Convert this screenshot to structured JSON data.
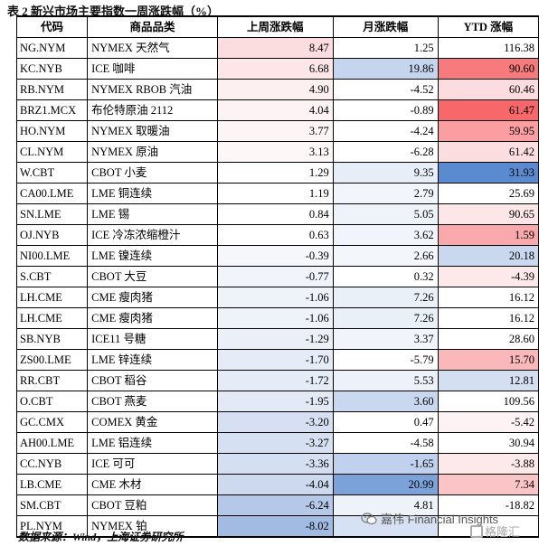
{
  "caption": "表 2 新兴市场主要指数一周涨跌幅（%）",
  "headers": [
    "代码",
    "商品品类",
    "上周涨跌幅",
    "月涨跌幅",
    "YTD 涨幅"
  ],
  "rows": [
    {
      "code": "NG.NYM",
      "name": "NYMEX 天然气",
      "week": "8.47",
      "month": "1.25",
      "ytd": "116.38",
      "week_color": "#fbdddf",
      "month_color": "#ffffff",
      "ytd_color": "#ffffff"
    },
    {
      "code": "KC.NYB",
      "name": "ICE 咖啡",
      "week": "6.68",
      "month": "19.86",
      "ytd": "90.60",
      "week_color": "#fce6e8",
      "month_color": "#c5d5ee",
      "ytd_color": "#f77a7d"
    },
    {
      "code": "RB.NYM",
      "name": "NYMEX RBOB 汽油",
      "week": "4.90",
      "month": "-4.52",
      "ytd": "60.46",
      "week_color": "#fdf0f1",
      "month_color": "#ffffff",
      "ytd_color": "#fcdcde"
    },
    {
      "code": "BRZ1.MCX",
      "name": "布伦特原油 2112",
      "week": "4.04",
      "month": "-0.89",
      "ytd": "61.47",
      "week_color": "#fdf3f4",
      "month_color": "#ffffff",
      "ytd_color": "#f8686b"
    },
    {
      "code": "HO.NYM",
      "name": "NYMEX 取暖油",
      "week": "3.77",
      "month": "-4.24",
      "ytd": "59.95",
      "week_color": "#fdf4f5",
      "month_color": "#ffffff",
      "ytd_color": "#fa9ea1"
    },
    {
      "code": "CL.NYM",
      "name": "NYMEX 原油",
      "week": "3.13",
      "month": "-6.28",
      "ytd": "61.42",
      "week_color": "#fef7f7",
      "month_color": "#ffffff",
      "ytd_color": "#fcdee0"
    },
    {
      "code": "W.CBT",
      "name": "CBOT 小麦",
      "week": "1.29",
      "month": "9.35",
      "ytd": "31.93",
      "week_color": "#ffffff",
      "month_color": "#e8eef8",
      "ytd_color": "#5a8ad0"
    },
    {
      "code": "CA00.LME",
      "name": "LME 铜连续",
      "week": "1.19",
      "month": "2.79",
      "ytd": "25.69",
      "week_color": "#ffffff",
      "month_color": "#f2f5fb",
      "ytd_color": "#ffffff"
    },
    {
      "code": "SN.LME",
      "name": "LME 锡",
      "week": "0.84",
      "month": "5.05",
      "ytd": "90.65",
      "week_color": "#ffffff",
      "month_color": "#eef2f9",
      "ytd_color": "#fce6e8"
    },
    {
      "code": "OJ.NYB",
      "name": "ICE 冷冻浓缩橙汁",
      "week": "0.63",
      "month": "3.62",
      "ytd": "1.59",
      "week_color": "#ffffff",
      "month_color": "#f1f4fa",
      "ytd_color": "#f9a9ac"
    },
    {
      "code": "NI00.LME",
      "name": "LME 镍连续",
      "week": "-0.39",
      "month": "2.66",
      "ytd": "20.18",
      "week_color": "#f5f7fb",
      "month_color": "#f3f6fb",
      "ytd_color": "#c9d8ee"
    },
    {
      "code": "S.CBT",
      "name": "CBOT 大豆",
      "week": "-0.77",
      "month": "0.32",
      "ytd": "-4.39",
      "week_color": "#f1f4fa",
      "month_color": "#ffffff",
      "ytd_color": "#fde8ea"
    },
    {
      "code": "LH.CME",
      "name": "CME 瘦肉猪",
      "week": "-1.06",
      "month": "7.26",
      "ytd": "16.12",
      "week_color": "#eef2f9",
      "month_color": "#eaf0f8",
      "ytd_color": "#ffffff"
    },
    {
      "code": "LH.CME",
      "name": "CME 瘦肉猪",
      "week": "-1.06",
      "month": "7.26",
      "ytd": "16.12",
      "week_color": "#eef2f9",
      "month_color": "#eaf0f8",
      "ytd_color": "#ffffff"
    },
    {
      "code": "SB.NYB",
      "name": "ICE11 号糖",
      "week": "-1.29",
      "month": "3.37",
      "ytd": "28.60",
      "week_color": "#ebf0f8",
      "month_color": "#f1f4fa",
      "ytd_color": "#ffffff"
    },
    {
      "code": "ZS00.LME",
      "name": "LME 锌连续",
      "week": "-1.70",
      "month": "-5.79",
      "ytd": "15.70",
      "week_color": "#e6ecf7",
      "month_color": "#ffffff",
      "ytd_color": "#fab8bb"
    },
    {
      "code": "RR.CBT",
      "name": "CBOT 稻谷",
      "week": "-1.72",
      "month": "5.53",
      "ytd": "12.81",
      "week_color": "#e6ecf7",
      "month_color": "#edf1f9",
      "ytd_color": "#d4e0f2"
    },
    {
      "code": "O.CBT",
      "name": "CBOT 燕麦",
      "week": "-1.95",
      "month": "3.60",
      "ytd": "109.56",
      "week_color": "#e3eaf6",
      "month_color": "#c9d8ee",
      "ytd_color": "#ffffff"
    },
    {
      "code": "GC.CMX",
      "name": "COMEX 黄金",
      "week": "-3.20",
      "month": "0.47",
      "ytd": "-5.42",
      "week_color": "#d6e0f2",
      "month_color": "#ffffff",
      "ytd_color": "#fef3f4"
    },
    {
      "code": "AH00.LME",
      "name": "LME 铝连续",
      "week": "-3.27",
      "month": "-4.58",
      "ytd": "30.94",
      "week_color": "#d5e0f2",
      "month_color": "#ffffff",
      "ytd_color": "#ffffff"
    },
    {
      "code": "CC.NYB",
      "name": "ICE 可可",
      "week": "-3.36",
      "month": "-1.65",
      "ytd": "-3.88",
      "week_color": "#d4dff2",
      "month_color": "#c0d1ed",
      "ytd_color": "#fde9ea"
    },
    {
      "code": "LB.CME",
      "name": "CME 木材",
      "week": "-4.04",
      "month": "20.99",
      "ytd": "7.34",
      "week_color": "#cdd9ef",
      "month_color": "#7ca2da",
      "ytd_color": "#fbc5c7"
    },
    {
      "code": "SM.CBT",
      "name": "CBOT 豆粕",
      "week": "-6.24",
      "month": "4.81",
      "ytd": "-18.82",
      "week_color": "#b5c8e8",
      "month_color": "#eef2f9",
      "ytd_color": "#ffffff"
    },
    {
      "code": "PL.NYM",
      "name": "NYMEX 铂",
      "week": "-8.02",
      "month": "",
      "ytd": "",
      "week_color": "#a2bbe3",
      "month_color": "#d6e1f3",
      "ytd_color": "#ffffff"
    }
  ],
  "source": "数据来源：Wind，上海证券研究所",
  "watermark": "嘉伟 Financial Insights",
  "logo_text": "格隆汇",
  "icons": {
    "watermark_icon": "wechat-icon",
    "logo_icon": "gelonghui-logo-icon"
  }
}
